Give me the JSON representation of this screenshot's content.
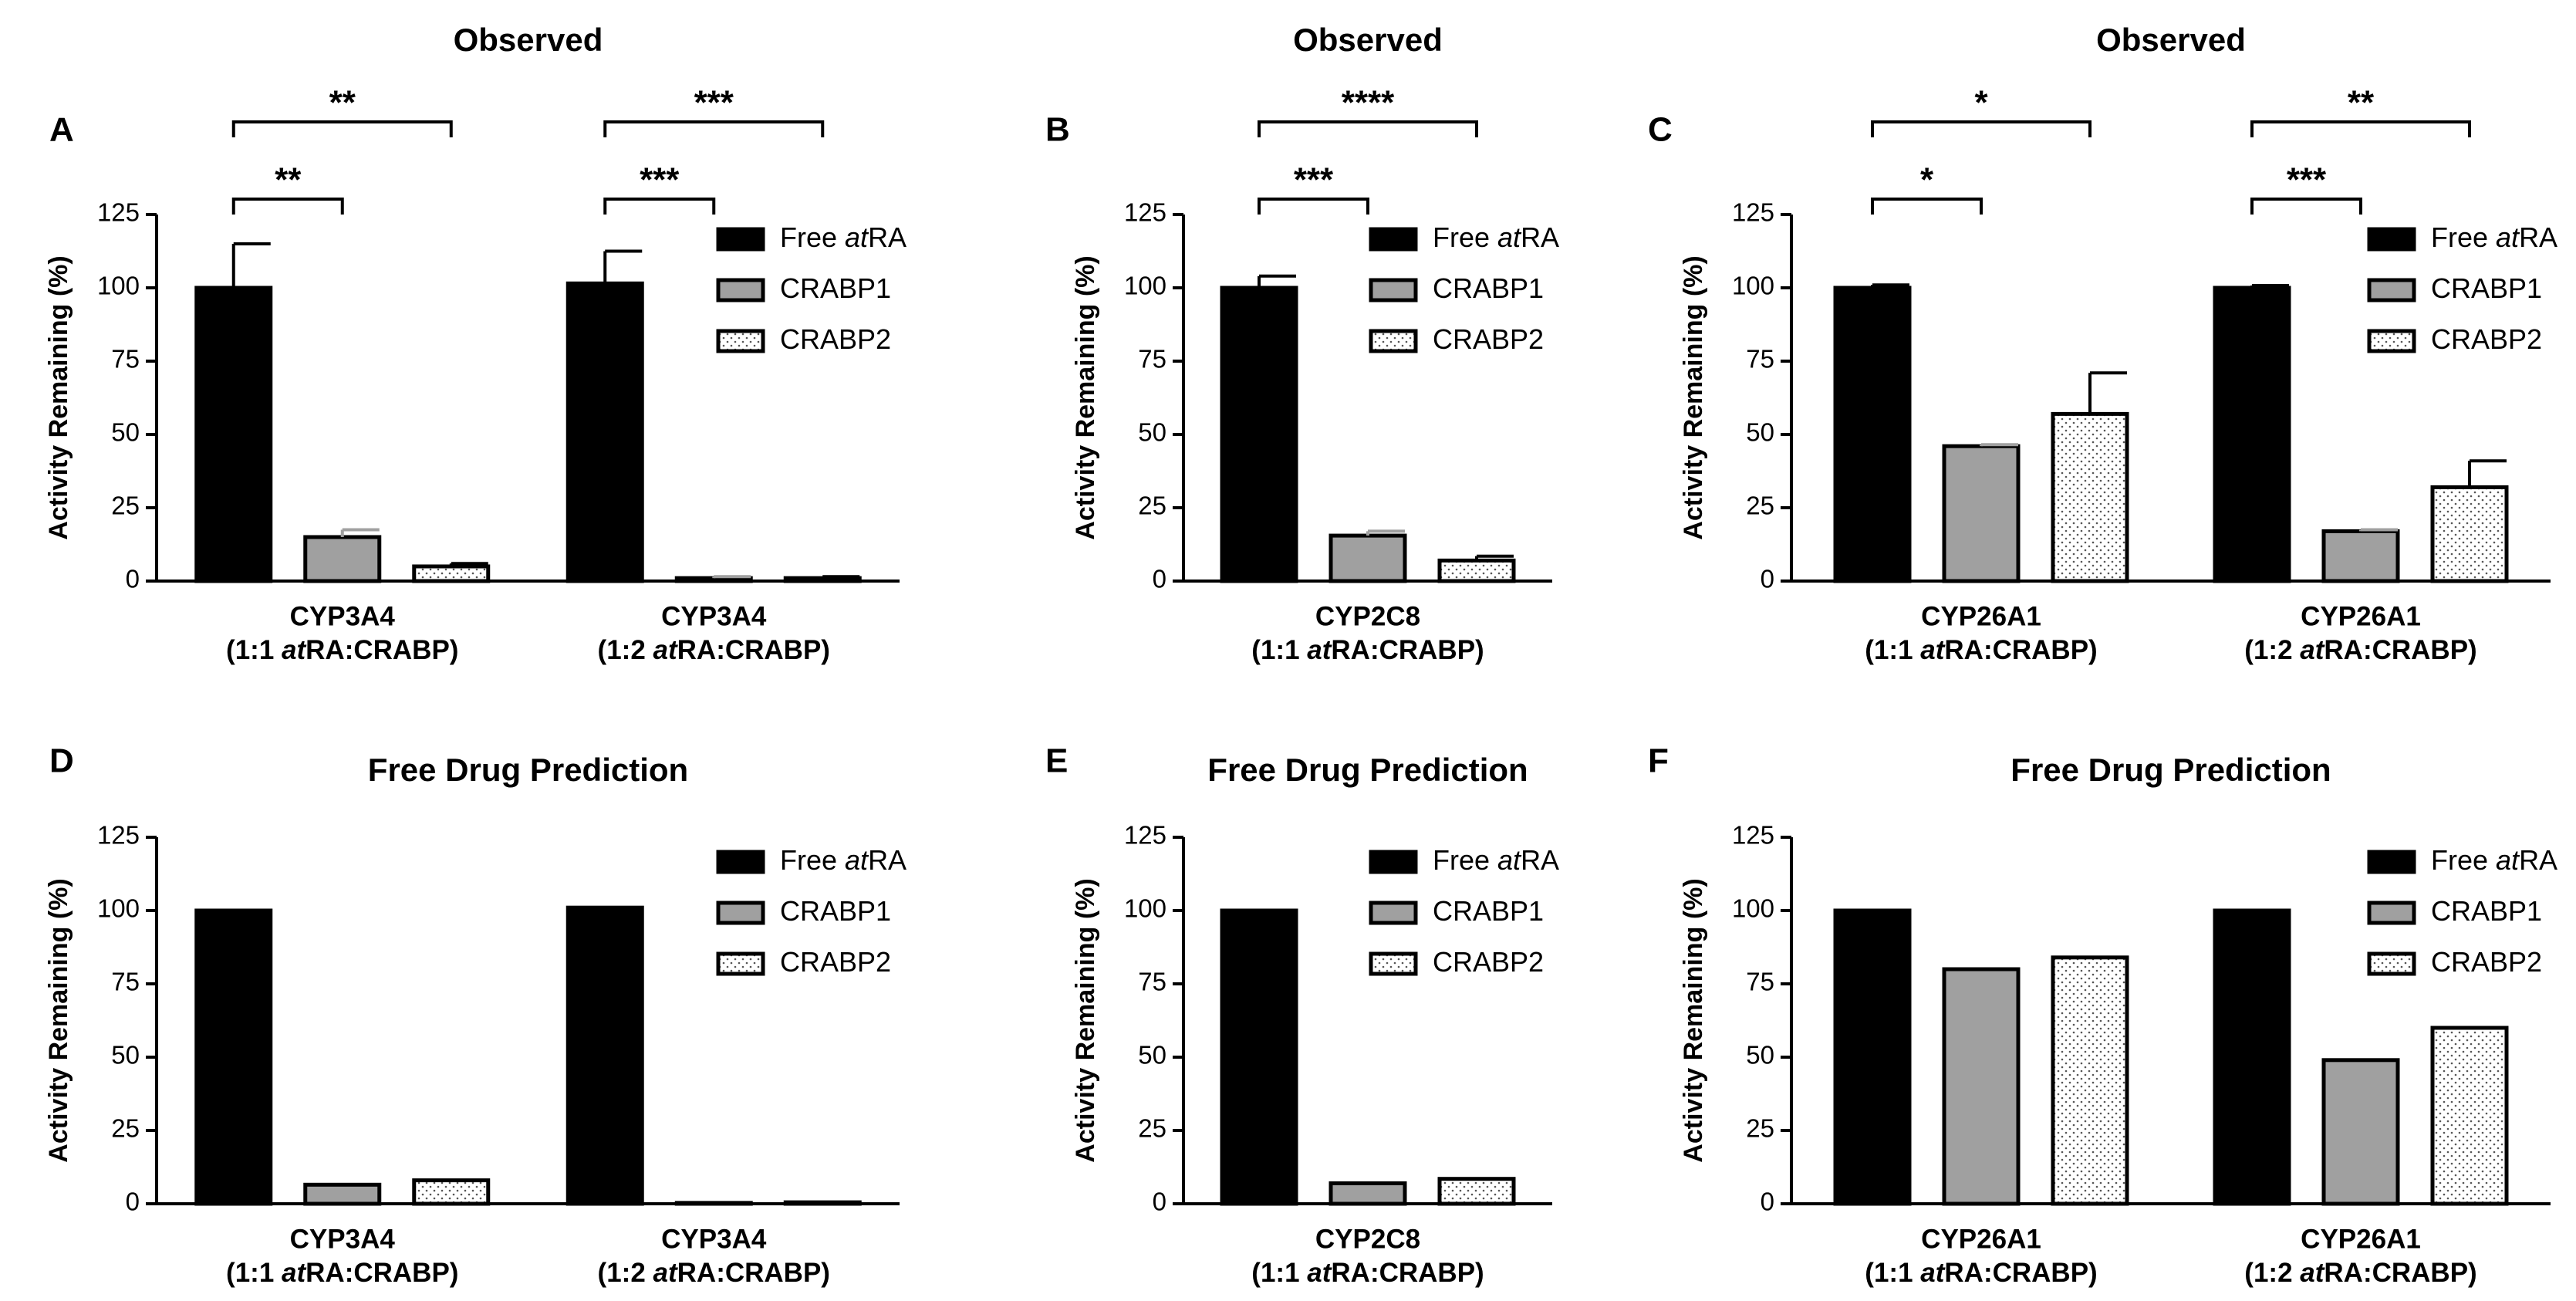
{
  "chart_data": [
    {
      "type": "bar",
      "label": "A",
      "title": "Observed",
      "ylabel": "Activity Remaining (%)",
      "categories": [
        "CYP3A4",
        "CYP3A4"
      ],
      "category_subtitles": [
        "(1:1 atRA:CRABP)",
        "(1:2 atRA:CRABP)"
      ],
      "series": [
        {
          "name": "Free atRA",
          "color": "#000000",
          "values": [
            100,
            101.5
          ],
          "errors": [
            15,
            11
          ]
        },
        {
          "name": "CRABP1",
          "color": "#a0a0a0",
          "values": [
            15,
            1
          ],
          "errors": [
            2.5,
            0.5
          ]
        },
        {
          "name": "CRABP2",
          "color": "#ffffff",
          "pattern": "dots",
          "values": [
            5,
            1
          ],
          "errors": [
            1,
            0.5
          ]
        }
      ],
      "significance": [
        {
          "group": 0,
          "from": 0,
          "to": 1,
          "label": "**"
        },
        {
          "group": 0,
          "from": 0,
          "to": 2,
          "label": "**"
        },
        {
          "group": 1,
          "from": 0,
          "to": 1,
          "label": "***"
        },
        {
          "group": 1,
          "from": 0,
          "to": 2,
          "label": "***"
        }
      ],
      "ylim": [
        0,
        125
      ],
      "yticks": [
        0,
        25,
        50,
        75,
        100,
        125
      ],
      "grid": false
    },
    {
      "type": "bar",
      "label": "B",
      "title": "Observed",
      "ylabel": "Activity Remaining (%)",
      "categories": [
        "CYP2C8"
      ],
      "category_subtitles": [
        "(1:1 atRA:CRABP)"
      ],
      "series": [
        {
          "name": "Free atRA",
          "color": "#000000",
          "values": [
            100
          ],
          "errors": [
            4
          ]
        },
        {
          "name": "CRABP1",
          "color": "#a0a0a0",
          "values": [
            15.5
          ],
          "errors": [
            1.5
          ]
        },
        {
          "name": "CRABP2",
          "color": "#ffffff",
          "pattern": "dots",
          "values": [
            7
          ],
          "errors": [
            1.5
          ]
        }
      ],
      "significance": [
        {
          "group": 0,
          "from": 0,
          "to": 1,
          "label": "***"
        },
        {
          "group": 0,
          "from": 0,
          "to": 2,
          "label": "****"
        }
      ],
      "ylim": [
        0,
        125
      ],
      "yticks": [
        0,
        25,
        50,
        75,
        100,
        125
      ],
      "grid": false
    },
    {
      "type": "bar",
      "label": "C",
      "title": "Observed",
      "ylabel": "Activity Remaining (%)",
      "categories": [
        "CYP26A1",
        "CYP26A1"
      ],
      "category_subtitles": [
        "(1:1 atRA:CRABP)",
        "(1:2 atRA:CRABP)"
      ],
      "series": [
        {
          "name": "Free atRA",
          "color": "#000000",
          "values": [
            100,
            100
          ],
          "errors": [
            1,
            0.8
          ]
        },
        {
          "name": "CRABP1",
          "color": "#a0a0a0",
          "values": [
            46,
            17
          ],
          "errors": [
            0.5,
            0.5
          ]
        },
        {
          "name": "CRABP2",
          "color": "#ffffff",
          "pattern": "dots",
          "values": [
            57,
            32
          ],
          "errors": [
            14,
            9
          ]
        }
      ],
      "significance": [
        {
          "group": 0,
          "from": 0,
          "to": 1,
          "label": "*"
        },
        {
          "group": 0,
          "from": 0,
          "to": 2,
          "label": "*"
        },
        {
          "group": 1,
          "from": 0,
          "to": 1,
          "label": "***"
        },
        {
          "group": 1,
          "from": 0,
          "to": 2,
          "label": "**"
        }
      ],
      "ylim": [
        0,
        125
      ],
      "yticks": [
        0,
        25,
        50,
        75,
        100,
        125
      ],
      "grid": false
    },
    {
      "type": "bar",
      "label": "D",
      "title": "Free Drug Prediction",
      "ylabel": "Activity Remaining (%)",
      "categories": [
        "CYP3A4",
        "CYP3A4"
      ],
      "category_subtitles": [
        "(1:1 atRA:CRABP)",
        "(1:2 atRA:CRABP)"
      ],
      "series": [
        {
          "name": "Free atRA",
          "color": "#000000",
          "values": [
            100,
            101
          ]
        },
        {
          "name": "CRABP1",
          "color": "#a0a0a0",
          "values": [
            6.5,
            0.3
          ]
        },
        {
          "name": "CRABP2",
          "color": "#ffffff",
          "pattern": "dots",
          "values": [
            8,
            0.5
          ]
        }
      ],
      "ylim": [
        0,
        125
      ],
      "yticks": [
        0,
        25,
        50,
        75,
        100,
        125
      ],
      "grid": false
    },
    {
      "type": "bar",
      "label": "E",
      "title": "Free Drug Prediction",
      "ylabel": "Activity Remaining (%)",
      "categories": [
        "CYP2C8"
      ],
      "category_subtitles": [
        "(1:1 atRA:CRABP)"
      ],
      "series": [
        {
          "name": "Free atRA",
          "color": "#000000",
          "values": [
            100
          ]
        },
        {
          "name": "CRABP1",
          "color": "#a0a0a0",
          "values": [
            7
          ]
        },
        {
          "name": "CRABP2",
          "color": "#ffffff",
          "pattern": "dots",
          "values": [
            8.5
          ]
        }
      ],
      "ylim": [
        0,
        125
      ],
      "yticks": [
        0,
        25,
        50,
        75,
        100,
        125
      ],
      "grid": false
    },
    {
      "type": "bar",
      "label": "F",
      "title": "Free Drug Prediction",
      "ylabel": "Activity Remaining (%)",
      "categories": [
        "CYP26A1",
        "CYP26A1"
      ],
      "category_subtitles": [
        "(1:1 atRA:CRABP)",
        "(1:2 atRA:CRABP)"
      ],
      "series": [
        {
          "name": "Free atRA",
          "color": "#000000",
          "values": [
            100,
            100
          ]
        },
        {
          "name": "CRABP1",
          "color": "#a0a0a0",
          "values": [
            80,
            49
          ]
        },
        {
          "name": "CRABP2",
          "color": "#ffffff",
          "pattern": "dots",
          "values": [
            84,
            60
          ]
        }
      ],
      "ylim": [
        0,
        125
      ],
      "yticks": [
        0,
        25,
        50,
        75,
        100,
        125
      ],
      "grid": false
    }
  ]
}
